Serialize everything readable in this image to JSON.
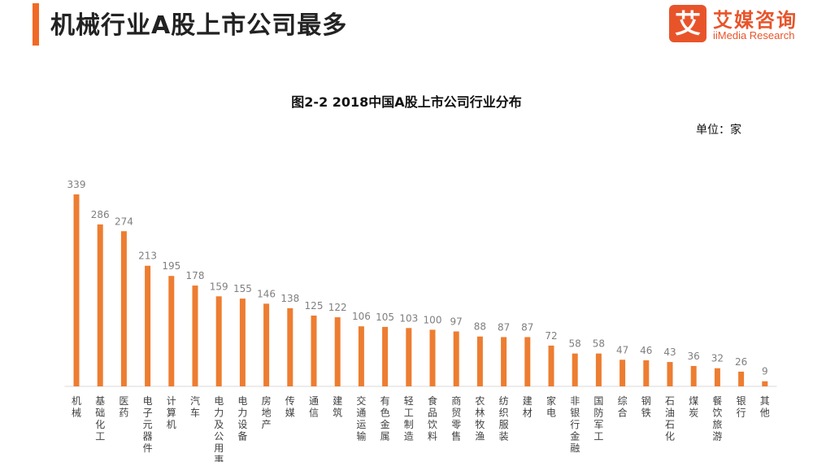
{
  "header": {
    "title": "机械行业A股上市公司最多",
    "accent_color": "#F06A25"
  },
  "logo": {
    "mark": "艾",
    "name_cn": "艾媒咨询",
    "name_en": "iiMedia Research",
    "color": "#E8542A"
  },
  "chart_data": {
    "type": "bar",
    "title": "图2-2 2018中国A股上市公司行业分布",
    "unit": "单位：家",
    "bar_color": "#ED7D31",
    "categories": [
      "机械",
      "基础化工",
      "医药",
      "电子元器件",
      "计算机",
      "汽车",
      "电力及公用事业",
      "电力设备",
      "房地产",
      "传媒",
      "通信",
      "建筑",
      "交通运输",
      "有色金属",
      "轻工制造",
      "食品饮料",
      "商贸零售",
      "农林牧渔",
      "纺织服装",
      "建材",
      "家电",
      "非银行金融",
      "国防军工",
      "综合",
      "钢铁",
      "石油石化",
      "煤炭",
      "餐饮旅游",
      "银行",
      "其他"
    ],
    "values": [
      339,
      286,
      274,
      213,
      195,
      178,
      159,
      155,
      146,
      138,
      125,
      122,
      106,
      105,
      103,
      100,
      97,
      88,
      87,
      87,
      72,
      58,
      58,
      47,
      46,
      43,
      36,
      32,
      26,
      9
    ],
    "ylim": [
      0,
      339
    ],
    "grid": false,
    "legend": "none"
  }
}
